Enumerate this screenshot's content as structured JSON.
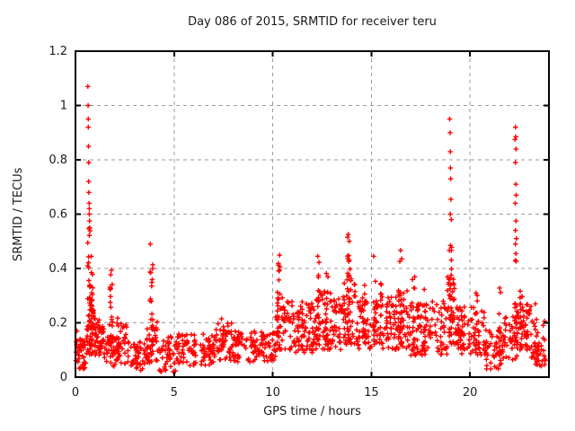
{
  "chart_data": {
    "type": "scatter",
    "title": "Day 086 of 2015, SRMTID for receiver teru",
    "xlabel": "GPS time / hours",
    "ylabel": "SRMTID / TECUs",
    "xlim": [
      0,
      24
    ],
    "ylim": [
      0,
      1.2
    ],
    "xticks": [
      0,
      5,
      10,
      15,
      20
    ],
    "xtick_labels": [
      "0",
      "5",
      "10",
      "15",
      "20"
    ],
    "yticks": [
      0,
      0.2,
      0.4,
      0.6,
      0.8,
      1,
      1.2
    ],
    "ytick_labels": [
      "0",
      "0.2",
      "0.4",
      "0.6",
      "0.8",
      "1",
      "1.2"
    ],
    "grid": {
      "style": "dashed",
      "color": "#9b9b9b"
    },
    "border_color": "#000000",
    "text_color": "#1a1a1a",
    "background": "#ffffff",
    "legend": "none",
    "marker": {
      "shape": "plus",
      "color": "#ff0000",
      "size": 5.5
    },
    "seed": 20150086,
    "points": [
      [
        0.63,
        1.07
      ],
      [
        0.64,
        1.0
      ],
      [
        0.65,
        0.95
      ],
      [
        0.65,
        0.92
      ],
      [
        0.66,
        0.85
      ],
      [
        0.67,
        0.79
      ],
      [
        0.67,
        0.72
      ],
      [
        0.68,
        0.68
      ],
      [
        0.69,
        0.64
      ],
      [
        0.7,
        0.62
      ],
      [
        0.7,
        0.6
      ],
      [
        0.71,
        0.575
      ],
      [
        0.72,
        0.55
      ],
      [
        18.97,
        0.95
      ],
      [
        18.99,
        0.9
      ],
      [
        19.0,
        0.83
      ],
      [
        19.01,
        0.77
      ],
      [
        19.02,
        0.73
      ],
      [
        19.03,
        0.655
      ],
      [
        19.0,
        0.6
      ],
      [
        19.05,
        0.58
      ],
      [
        22.3,
        0.92
      ],
      [
        22.32,
        0.885
      ],
      [
        22.28,
        0.875
      ],
      [
        22.33,
        0.84
      ],
      [
        22.3,
        0.79
      ],
      [
        22.32,
        0.71
      ],
      [
        22.34,
        0.67
      ],
      [
        22.29,
        0.64
      ],
      [
        22.33,
        0.575
      ],
      [
        22.3,
        0.54
      ],
      [
        22.35,
        0.51
      ],
      [
        22.3,
        0.49
      ],
      [
        22.32,
        0.455
      ],
      [
        22.29,
        0.43
      ],
      [
        4.95,
        0.02
      ],
      [
        21.05,
        0.03
      ],
      [
        0.08,
        0.17
      ],
      [
        3.3,
        0.025
      ]
    ],
    "columns": [
      [
        0.68,
        0.2,
        0.55,
        22
      ],
      [
        0.85,
        0.15,
        0.46,
        20
      ],
      [
        1.8,
        0.1,
        0.41,
        18
      ],
      [
        2.15,
        0.06,
        0.22,
        10
      ],
      [
        3.85,
        0.08,
        0.49,
        22
      ],
      [
        7.45,
        0.1,
        0.22,
        8
      ],
      [
        10.3,
        0.15,
        0.46,
        18
      ],
      [
        11.3,
        0.12,
        0.33,
        10
      ],
      [
        12.3,
        0.12,
        0.45,
        16
      ],
      [
        12.75,
        0.12,
        0.42,
        12
      ],
      [
        13.85,
        0.2,
        0.6,
        22
      ],
      [
        14.6,
        0.12,
        0.35,
        10
      ],
      [
        15.15,
        0.12,
        0.45,
        14
      ],
      [
        15.5,
        0.12,
        0.38,
        10
      ],
      [
        16.5,
        0.12,
        0.49,
        16
      ],
      [
        17.15,
        0.1,
        0.4,
        12
      ],
      [
        17.7,
        0.1,
        0.33,
        10
      ],
      [
        19.0,
        0.15,
        0.56,
        20
      ],
      [
        19.55,
        0.1,
        0.35,
        10
      ],
      [
        20.3,
        0.1,
        0.32,
        10
      ],
      [
        21.5,
        0.08,
        0.35,
        10
      ],
      [
        22.32,
        0.12,
        0.45,
        16
      ],
      [
        22.6,
        0.1,
        0.35,
        12
      ],
      [
        22.85,
        0.1,
        0.38,
        10
      ],
      [
        23.3,
        0.06,
        0.28,
        8
      ]
    ],
    "bands": [
      [
        0.02,
        0.55,
        0.03,
        0.14,
        45,
        1
      ],
      [
        0.55,
        0.95,
        0.08,
        0.3,
        40,
        1.3
      ],
      [
        0.95,
        1.45,
        0.08,
        0.23,
        45,
        1.2
      ],
      [
        1.45,
        2.1,
        0.04,
        0.16,
        40,
        1
      ],
      [
        2.1,
        2.7,
        0.05,
        0.2,
        35,
        1.3
      ],
      [
        2.7,
        3.6,
        0.03,
        0.13,
        45,
        1
      ],
      [
        3.6,
        4.15,
        0.05,
        0.22,
        35,
        1.2
      ],
      [
        4.15,
        5.1,
        0.02,
        0.15,
        45,
        1.2
      ],
      [
        5.1,
        7.0,
        0.04,
        0.16,
        95,
        1
      ],
      [
        7.0,
        8.0,
        0.06,
        0.2,
        55,
        1
      ],
      [
        8.0,
        10.15,
        0.05,
        0.17,
        110,
        1
      ],
      [
        10.15,
        10.7,
        0.1,
        0.3,
        35,
        1.2
      ],
      [
        10.7,
        12.1,
        0.09,
        0.28,
        85,
        1.1
      ],
      [
        12.1,
        13.6,
        0.1,
        0.32,
        90,
        1.1
      ],
      [
        13.6,
        14.2,
        0.12,
        0.38,
        45,
        1.2
      ],
      [
        14.2,
        16.3,
        0.1,
        0.3,
        120,
        1.1
      ],
      [
        16.3,
        17.0,
        0.1,
        0.33,
        45,
        1.2
      ],
      [
        17.0,
        18.85,
        0.08,
        0.28,
        100,
        1.2
      ],
      [
        18.85,
        19.3,
        0.12,
        0.38,
        35,
        1.2
      ],
      [
        19.3,
        20.8,
        0.08,
        0.26,
        80,
        1.2
      ],
      [
        20.8,
        21.7,
        0.03,
        0.18,
        50,
        1.2
      ],
      [
        21.7,
        22.45,
        0.06,
        0.24,
        40,
        1.2
      ],
      [
        22.45,
        23.1,
        0.1,
        0.3,
        40,
        1.2
      ],
      [
        23.1,
        23.85,
        0.04,
        0.22,
        45,
        1.3
      ]
    ]
  }
}
